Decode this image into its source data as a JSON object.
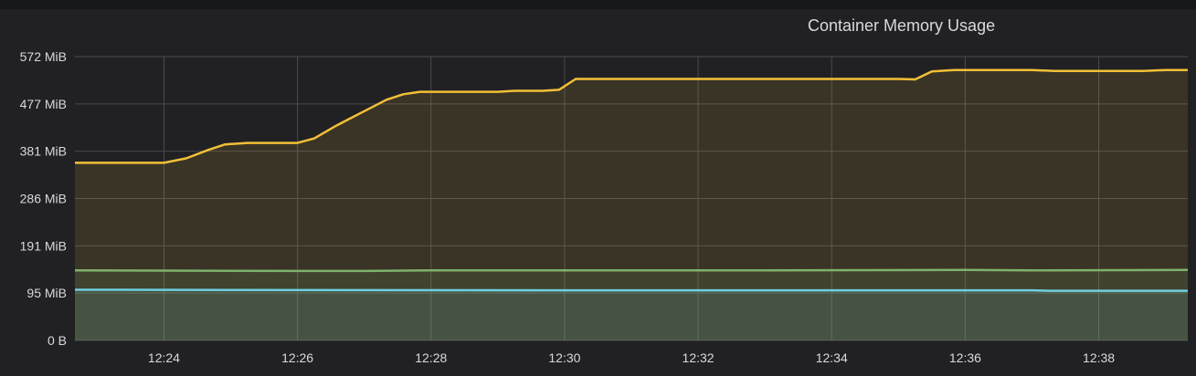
{
  "panel": {
    "title": "Container Memory Usage"
  },
  "colors": {
    "background": "#212124",
    "grid": "#4a4a4c",
    "series_yellow": "#f2c037",
    "series_green": "#7eb26d",
    "series_cyan": "#6ed0e0",
    "axis_text": "#d8d9da"
  },
  "chart_data": {
    "type": "area",
    "title": "Container Memory Usage",
    "xlabel": "",
    "ylabel": "",
    "x_range": [
      "12:22:40",
      "12:39:20"
    ],
    "y_unit": "MiB",
    "ylim": [
      0,
      572
    ],
    "y_ticks": [
      {
        "value": 0,
        "label": "0 B"
      },
      {
        "value": 95.33,
        "label": "95 MiB"
      },
      {
        "value": 190.67,
        "label": "191 MiB"
      },
      {
        "value": 286,
        "label": "286 MiB"
      },
      {
        "value": 381.33,
        "label": "381 MiB"
      },
      {
        "value": 476.67,
        "label": "477 MiB"
      },
      {
        "value": 572,
        "label": "572 MiB"
      }
    ],
    "x_ticks": [
      "12:24",
      "12:26",
      "12:28",
      "12:30",
      "12:32",
      "12:34",
      "12:36",
      "12:38"
    ],
    "grid": true,
    "legend": "none",
    "series": [
      {
        "color": "#f2c037",
        "points": [
          [
            "12:22:40",
            358
          ],
          [
            "12:24:00",
            358
          ],
          [
            "12:24:20",
            367
          ],
          [
            "12:24:40",
            384
          ],
          [
            "12:24:55",
            395
          ],
          [
            "12:25:15",
            398
          ],
          [
            "12:26:00",
            398
          ],
          [
            "12:26:15",
            407
          ],
          [
            "12:26:35",
            433
          ],
          [
            "12:27:00",
            462
          ],
          [
            "12:27:20",
            485
          ],
          [
            "12:27:35",
            496
          ],
          [
            "12:27:50",
            501
          ],
          [
            "12:29:00",
            501
          ],
          [
            "12:29:15",
            503
          ],
          [
            "12:29:40",
            503
          ],
          [
            "12:29:55",
            505
          ],
          [
            "12:30:10",
            527
          ],
          [
            "12:35:00",
            527
          ],
          [
            "12:35:15",
            526
          ],
          [
            "12:35:30",
            542
          ],
          [
            "12:35:50",
            545
          ],
          [
            "12:37:00",
            545
          ],
          [
            "12:37:20",
            543
          ],
          [
            "12:38:40",
            543
          ],
          [
            "12:39:00",
            545
          ],
          [
            "12:39:20",
            545
          ]
        ]
      },
      {
        "color": "#7eb26d",
        "points": [
          [
            "12:22:40",
            141
          ],
          [
            "12:26:00",
            140
          ],
          [
            "12:27:00",
            140
          ],
          [
            "12:28:00",
            141
          ],
          [
            "12:33:00",
            141
          ],
          [
            "12:36:00",
            142
          ],
          [
            "12:37:00",
            141
          ],
          [
            "12:39:20",
            142
          ]
        ]
      },
      {
        "color": "#6ed0e0",
        "points": [
          [
            "12:22:40",
            102
          ],
          [
            "12:30:00",
            101
          ],
          [
            "12:37:00",
            101
          ],
          [
            "12:37:15",
            100
          ],
          [
            "12:39:20",
            100
          ]
        ]
      }
    ]
  }
}
